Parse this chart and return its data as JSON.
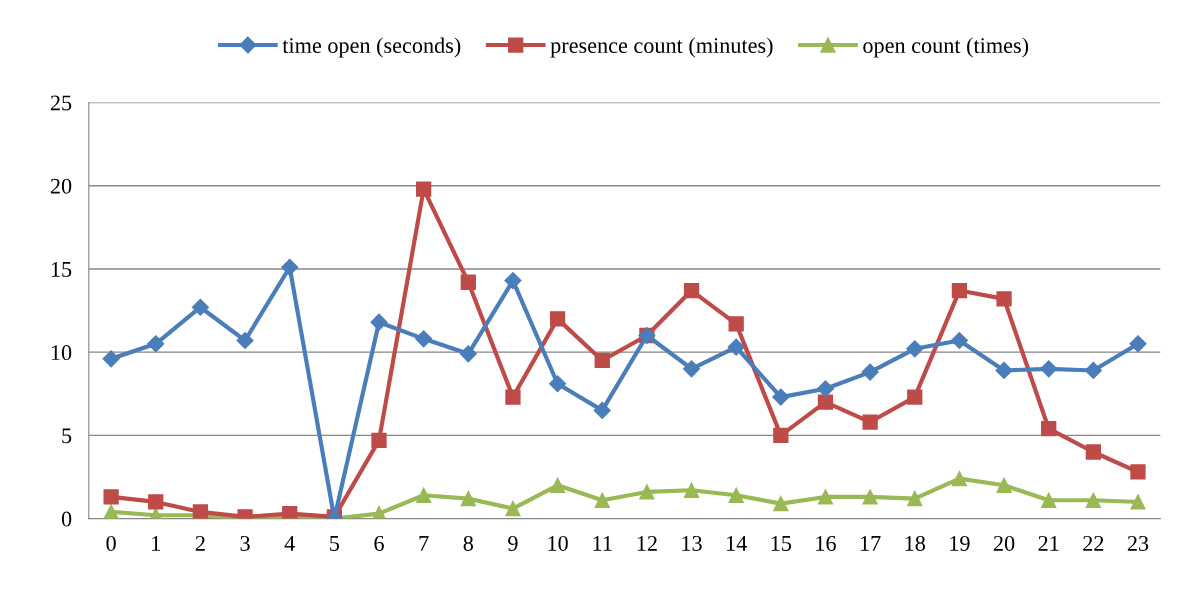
{
  "chart_data": {
    "type": "line",
    "categories": [
      "0",
      "1",
      "2",
      "3",
      "4",
      "5",
      "6",
      "7",
      "8",
      "9",
      "10",
      "11",
      "12",
      "13",
      "14",
      "15",
      "16",
      "17",
      "18",
      "19",
      "20",
      "21",
      "22",
      "23"
    ],
    "series": [
      {
        "name": "time open (seconds)",
        "color": "#4a7ebb",
        "marker": "diamond",
        "values": [
          9.6,
          10.5,
          12.7,
          10.7,
          15.1,
          0,
          11.8,
          10.8,
          9.9,
          14.3,
          8.1,
          6.5,
          11.0,
          9.0,
          10.3,
          7.3,
          7.8,
          8.8,
          10.2,
          10.7,
          8.9,
          9.0,
          8.9,
          10.5
        ]
      },
      {
        "name": "presence count (minutes)",
        "color": "#be4b48",
        "marker": "square",
        "values": [
          1.3,
          1.0,
          0.4,
          0.1,
          0.3,
          0.1,
          4.7,
          19.8,
          14.2,
          7.3,
          12.0,
          9.5,
          11.0,
          13.7,
          11.7,
          5.0,
          7.0,
          5.8,
          7.3,
          13.7,
          13.2,
          5.4,
          4.0,
          2.8
        ]
      },
      {
        "name": "open count (times)",
        "color": "#98b954",
        "marker": "triangle",
        "values": [
          0.4,
          0.2,
          0.2,
          0,
          0.1,
          0,
          0.3,
          1.4,
          1.2,
          0.6,
          2.0,
          1.1,
          1.6,
          1.7,
          1.4,
          0.9,
          1.3,
          1.3,
          1.2,
          2.4,
          2.0,
          1.1,
          1.1,
          1.0
        ]
      }
    ],
    "ylim": [
      0,
      25
    ],
    "yticks": [
      0,
      5,
      10,
      15,
      20,
      25
    ],
    "grid": "y",
    "legend": "top"
  }
}
